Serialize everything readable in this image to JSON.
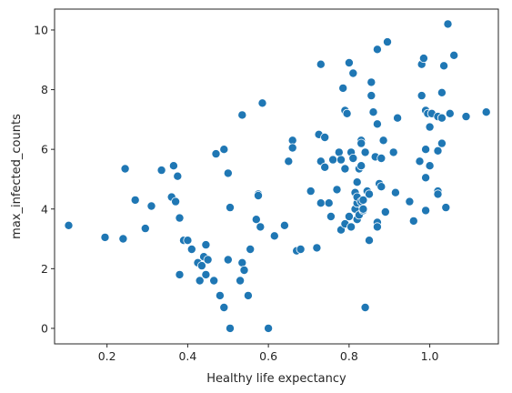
{
  "colors": {
    "point": "#1f77b4",
    "point_edge": "#ffffff",
    "axes": "#262626"
  },
  "chart_data": {
    "type": "scatter",
    "xlabel": "Healthy life expectancy",
    "ylabel": "max_infected_counts",
    "xlim": [
      0.07,
      1.17
    ],
    "ylim": [
      -0.52,
      10.7
    ],
    "xticks": [
      0.2,
      0.4,
      0.6,
      0.8,
      1.0
    ],
    "xtick_labels": [
      "0.2",
      "0.4",
      "0.6",
      "0.8",
      "1.0"
    ],
    "yticks": [
      0,
      2,
      4,
      6,
      8,
      10
    ],
    "ytick_labels": [
      "0",
      "2",
      "4",
      "6",
      "8",
      "10"
    ],
    "grid": false,
    "points": [
      [
        0.105,
        3.45
      ],
      [
        0.195,
        3.05
      ],
      [
        0.24,
        3.0
      ],
      [
        0.245,
        5.35
      ],
      [
        0.27,
        4.3
      ],
      [
        0.295,
        3.35
      ],
      [
        0.31,
        4.1
      ],
      [
        0.335,
        5.3
      ],
      [
        0.36,
        4.4
      ],
      [
        0.365,
        5.45
      ],
      [
        0.37,
        4.25
      ],
      [
        0.375,
        5.1
      ],
      [
        0.38,
        3.7
      ],
      [
        0.38,
        1.8
      ],
      [
        0.39,
        2.95
      ],
      [
        0.4,
        2.95
      ],
      [
        0.41,
        2.65
      ],
      [
        0.425,
        2.2
      ],
      [
        0.43,
        1.6
      ],
      [
        0.435,
        2.1
      ],
      [
        0.44,
        2.4
      ],
      [
        0.445,
        1.8
      ],
      [
        0.445,
        2.8
      ],
      [
        0.45,
        2.3
      ],
      [
        0.465,
        1.6
      ],
      [
        0.47,
        5.85
      ],
      [
        0.48,
        1.1
      ],
      [
        0.49,
        6.0
      ],
      [
        0.49,
        0.7
      ],
      [
        0.5,
        5.2
      ],
      [
        0.5,
        2.3
      ],
      [
        0.505,
        0.0
      ],
      [
        0.505,
        4.05
      ],
      [
        0.53,
        1.6
      ],
      [
        0.535,
        2.2
      ],
      [
        0.535,
        7.15
      ],
      [
        0.54,
        1.95
      ],
      [
        0.55,
        1.1
      ],
      [
        0.555,
        2.65
      ],
      [
        0.57,
        3.65
      ],
      [
        0.575,
        4.5
      ],
      [
        0.575,
        4.45
      ],
      [
        0.58,
        3.4
      ],
      [
        0.585,
        7.55
      ],
      [
        0.6,
        0.0
      ],
      [
        0.615,
        3.1
      ],
      [
        0.64,
        3.45
      ],
      [
        0.65,
        5.6
      ],
      [
        0.66,
        6.3
      ],
      [
        0.66,
        6.05
      ],
      [
        0.67,
        2.6
      ],
      [
        0.68,
        2.65
      ],
      [
        0.705,
        4.6
      ],
      [
        0.72,
        2.7
      ],
      [
        0.725,
        6.5
      ],
      [
        0.73,
        4.2
      ],
      [
        0.73,
        8.85
      ],
      [
        0.73,
        5.6
      ],
      [
        0.74,
        5.4
      ],
      [
        0.74,
        6.4
      ],
      [
        0.75,
        4.2
      ],
      [
        0.755,
        3.75
      ],
      [
        0.76,
        5.65
      ],
      [
        0.77,
        4.65
      ],
      [
        0.775,
        5.9
      ],
      [
        0.78,
        3.3
      ],
      [
        0.78,
        5.65
      ],
      [
        0.785,
        8.05
      ],
      [
        0.79,
        7.3
      ],
      [
        0.79,
        5.35
      ],
      [
        0.79,
        3.5
      ],
      [
        0.795,
        7.2
      ],
      [
        0.8,
        3.75
      ],
      [
        0.8,
        8.9
      ],
      [
        0.805,
        3.4
      ],
      [
        0.805,
        5.9
      ],
      [
        0.81,
        8.55
      ],
      [
        0.81,
        5.7
      ],
      [
        0.815,
        4.0
      ],
      [
        0.815,
        4.55
      ],
      [
        0.82,
        4.2
      ],
      [
        0.82,
        3.65
      ],
      [
        0.82,
        4.4
      ],
      [
        0.82,
        4.9
      ],
      [
        0.825,
        3.8
      ],
      [
        0.825,
        5.35
      ],
      [
        0.83,
        6.3
      ],
      [
        0.83,
        6.2
      ],
      [
        0.83,
        5.45
      ],
      [
        0.83,
        4.25
      ],
      [
        0.835,
        4.3
      ],
      [
        0.835,
        3.95
      ],
      [
        0.835,
        4.0
      ],
      [
        0.84,
        0.7
      ],
      [
        0.84,
        5.9
      ],
      [
        0.845,
        4.6
      ],
      [
        0.85,
        4.5
      ],
      [
        0.85,
        2.95
      ],
      [
        0.855,
        7.8
      ],
      [
        0.855,
        8.25
      ],
      [
        0.86,
        7.25
      ],
      [
        0.865,
        5.75
      ],
      [
        0.87,
        3.55
      ],
      [
        0.87,
        3.4
      ],
      [
        0.87,
        9.35
      ],
      [
        0.87,
        6.85
      ],
      [
        0.875,
        4.85
      ],
      [
        0.88,
        4.75
      ],
      [
        0.88,
        5.7
      ],
      [
        0.885,
        6.3
      ],
      [
        0.89,
        3.9
      ],
      [
        0.895,
        9.6
      ],
      [
        0.91,
        5.9
      ],
      [
        0.915,
        4.55
      ],
      [
        0.92,
        7.05
      ],
      [
        0.95,
        4.25
      ],
      [
        0.96,
        3.6
      ],
      [
        0.975,
        5.6
      ],
      [
        0.98,
        7.8
      ],
      [
        0.98,
        8.85
      ],
      [
        0.985,
        9.05
      ],
      [
        0.99,
        6.0
      ],
      [
        0.99,
        5.05
      ],
      [
        0.99,
        7.3
      ],
      [
        0.995,
        7.2
      ],
      [
        0.99,
        3.95
      ],
      [
        1.0,
        5.45
      ],
      [
        1.0,
        6.75
      ],
      [
        1.005,
        7.2
      ],
      [
        1.02,
        7.1
      ],
      [
        1.02,
        4.6
      ],
      [
        1.02,
        4.5
      ],
      [
        1.02,
        5.95
      ],
      [
        1.03,
        7.05
      ],
      [
        1.03,
        6.2
      ],
      [
        1.03,
        7.9
      ],
      [
        1.035,
        8.8
      ],
      [
        1.04,
        4.05
      ],
      [
        1.045,
        10.2
      ],
      [
        1.05,
        7.2
      ],
      [
        1.06,
        9.15
      ],
      [
        1.09,
        7.1
      ],
      [
        1.14,
        7.25
      ]
    ]
  }
}
